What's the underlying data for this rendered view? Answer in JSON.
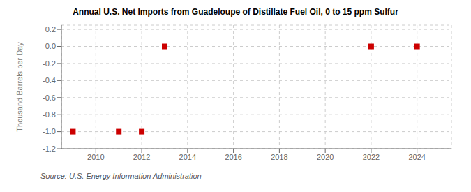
{
  "chart_data": {
    "type": "scatter",
    "title": "Annual U.S. Net Imports from Guadeloupe of Distillate Fuel Oil, 0 to 15 ppm Sulfur",
    "ylabel": "Thousand Barrels per Day",
    "annotation": "Source: U.S. Energy Information Administration",
    "x": [
      2009,
      2011,
      2012,
      2013,
      2022,
      2024
    ],
    "values": [
      -1.0,
      -1.0,
      -1.0,
      0.0,
      0.0,
      0.0
    ],
    "color": "#cc0000",
    "marker": "square",
    "xlim": [
      2008.5,
      2025.5
    ],
    "ylim": [
      -1.2,
      0.25
    ],
    "xticks": [
      2010,
      2012,
      2014,
      2016,
      2018,
      2020,
      2022,
      2024
    ],
    "yticks": [
      0.2,
      {
        "value": 0,
        "label": "0.0"
      },
      -0.2,
      -0.4,
      -0.6,
      -0.8,
      {
        "value": -1,
        "label": "-1.0"
      },
      -1.2
    ],
    "grid": true
  }
}
